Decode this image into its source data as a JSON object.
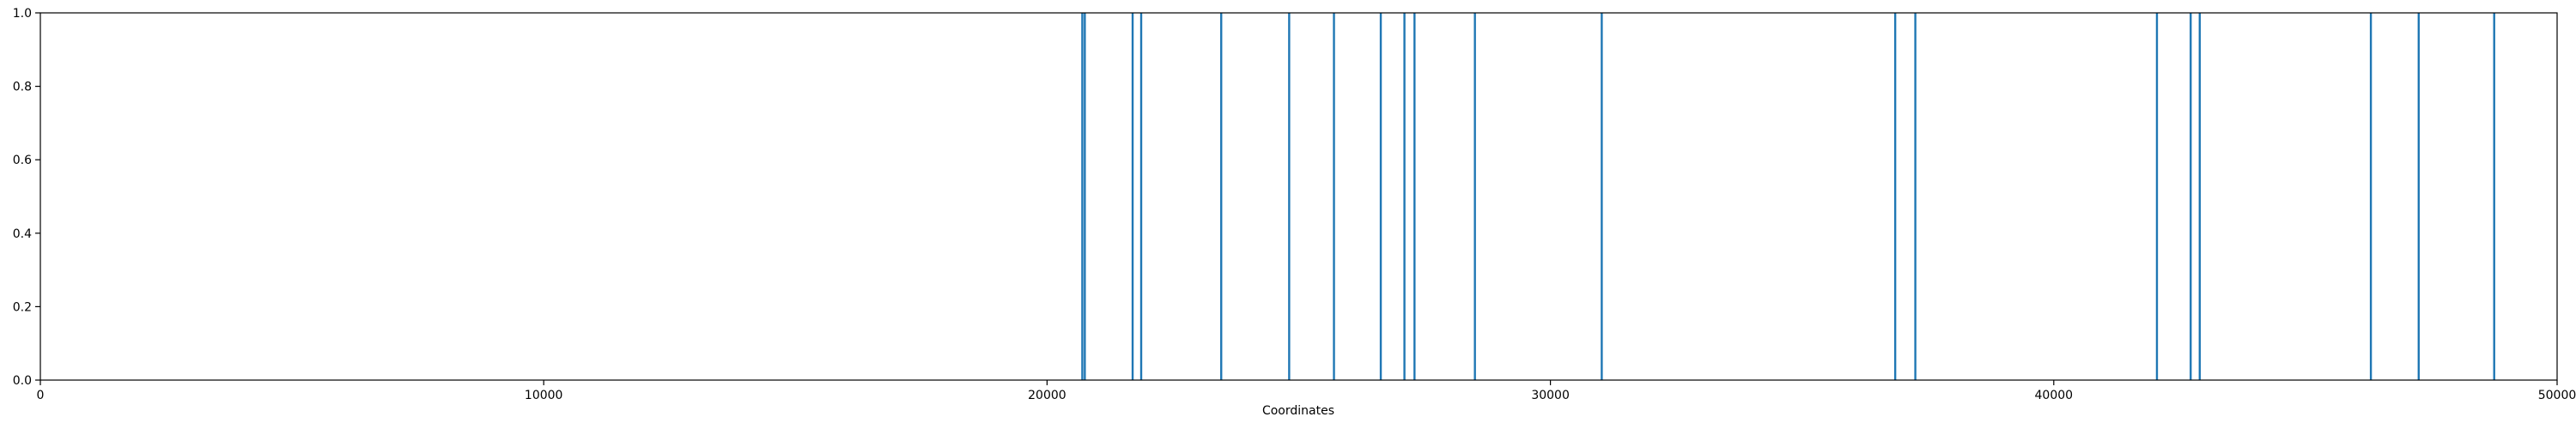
{
  "chart_data": {
    "type": "bar",
    "title": "",
    "xlabel": "Coordinates",
    "ylabel": "",
    "xlim": [
      0,
      50000
    ],
    "ylim": [
      0,
      1.0
    ],
    "grid": false,
    "legend": "none",
    "color": "#1f77b4",
    "x_ticks": [
      0,
      10000,
      20000,
      30000,
      40000,
      50000
    ],
    "y_ticks": [
      "0.0",
      "0.2",
      "0.4",
      "0.6",
      "0.8",
      "1.0"
    ],
    "series": [
      {
        "x": [
          20700,
          20750,
          21700,
          21870,
          23460,
          24810,
          25700,
          26630,
          27100,
          27300,
          28500,
          31020,
          36850,
          37250,
          42050,
          42720,
          42900,
          46300,
          47250,
          48750
        ],
        "values": [
          1,
          1,
          1,
          1,
          1,
          1,
          1,
          1,
          1,
          1,
          1,
          1,
          1,
          1,
          1,
          1,
          1,
          1,
          1,
          1
        ]
      }
    ]
  }
}
